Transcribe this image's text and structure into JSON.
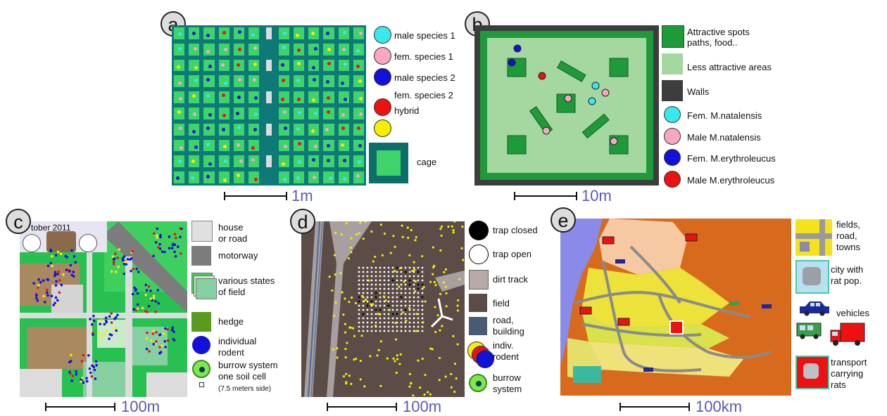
{
  "panels": {
    "a": {
      "letter": "a",
      "legend": [
        "male species 1",
        "fem. species 1",
        "male species 2",
        "fem. species 2",
        "hybrid",
        "cage"
      ],
      "colors": [
        "#39e8ef",
        "#f7a7c4",
        "#1111d8",
        "#e11",
        "#f5ee00"
      ],
      "scale": "1m"
    },
    "b": {
      "letter": "b",
      "legend_spots_1": "Attractive spots",
      "legend_spots_2": "paths, food..",
      "legend_less": "Less attractive areas",
      "legend_walls": "Walls",
      "legend_species": [
        "Fem. M.natalensis",
        "Male M.natalensis",
        "Fem. M.erythroleucus",
        "Male M.erythroleucus"
      ],
      "scale": "10m"
    },
    "c": {
      "letter": "c",
      "date": "tober 2011",
      "legend_house_1": "house",
      "legend_house_2": "or road",
      "legend_motorway": "motorway",
      "legend_field_1": "various states",
      "legend_field_2": "of field",
      "legend_hedge": "hedge",
      "legend_rodent_1": "individual",
      "legend_rodent_2": "rodent",
      "legend_burrow_1": "burrow system",
      "legend_burrow_2": "one soil cell",
      "legend_burrow_3": "(7.5 meters side)",
      "scale": "100m"
    },
    "d": {
      "letter": "d",
      "legend": [
        "trap closed",
        "trap open",
        "dirt track",
        "field",
        "road,",
        "building",
        "indiv.",
        "rodent",
        "burrow",
        "system"
      ],
      "scale": "100m"
    },
    "e": {
      "letter": "e",
      "legend": [
        "fields,",
        "road,",
        "towns",
        "city with",
        "rat pop.",
        "vehicles",
        "transport",
        "carrying",
        "rats"
      ],
      "scale": "100km"
    }
  }
}
